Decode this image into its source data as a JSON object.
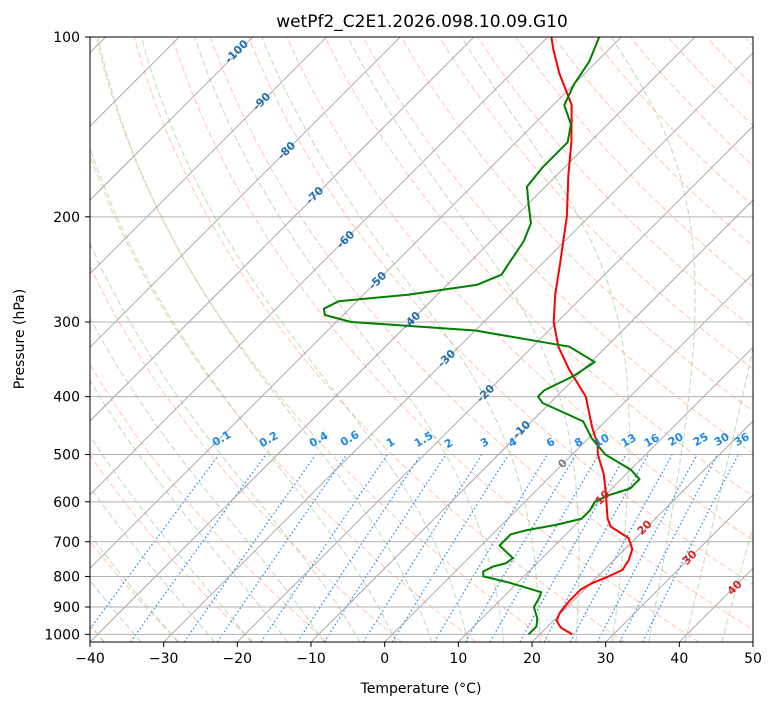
{
  "chart_data": {
    "type": "line",
    "title": "wetPf2_C2E1.2026.098.10.09.G10",
    "xlabel": "Temperature (°C)",
    "ylabel": "Pressure (hPa)",
    "xlim": [
      -40,
      50
    ],
    "ylim": [
      1030,
      100
    ],
    "y_scale": "log",
    "skew": true,
    "grid": true,
    "x_ticks": [
      -40,
      -30,
      -20,
      -10,
      0,
      10,
      20,
      30,
      40,
      50
    ],
    "y_ticks": [
      100,
      200,
      300,
      400,
      500,
      600,
      700,
      800,
      900,
      1000
    ],
    "series": [
      {
        "color": "#ff0000",
        "points": [
          {
            "p": 1000,
            "t": 24.4
          },
          {
            "p": 975,
            "t": 22.0
          },
          {
            "p": 950,
            "t": 20.5
          },
          {
            "p": 920,
            "t": 19.8
          },
          {
            "p": 880,
            "t": 19.5
          },
          {
            "p": 840,
            "t": 19.5
          },
          {
            "p": 820,
            "t": 20.2
          },
          {
            "p": 800,
            "t": 21.5
          },
          {
            "p": 780,
            "t": 22.5
          },
          {
            "p": 750,
            "t": 22.0
          },
          {
            "p": 720,
            "t": 21.0
          },
          {
            "p": 690,
            "t": 19.0
          },
          {
            "p": 660,
            "t": 15.0
          },
          {
            "p": 640,
            "t": 13.5
          },
          {
            "p": 620,
            "t": 12.3
          },
          {
            "p": 580,
            "t": 9.8
          },
          {
            "p": 540,
            "t": 7.0
          },
          {
            "p": 500,
            "t": 3.5
          },
          {
            "p": 480,
            "t": 2.0
          },
          {
            "p": 450,
            "t": -1.0
          },
          {
            "p": 400,
            "t": -6.0
          },
          {
            "p": 360,
            "t": -12.0
          },
          {
            "p": 330,
            "t": -16.5
          },
          {
            "p": 300,
            "t": -20.5
          },
          {
            "p": 270,
            "t": -24.0
          },
          {
            "p": 240,
            "t": -27.5
          },
          {
            "p": 200,
            "t": -33.0
          },
          {
            "p": 170,
            "t": -38.5
          },
          {
            "p": 150,
            "t": -42.5
          },
          {
            "p": 130,
            "t": -47.5
          },
          {
            "p": 115,
            "t": -53.5
          },
          {
            "p": 105,
            "t": -57.5
          },
          {
            "p": 100,
            "t": -59.5
          }
        ]
      },
      {
        "color": "#008000",
        "points": [
          {
            "p": 1000,
            "t": 18.5
          },
          {
            "p": 970,
            "t": 18.5
          },
          {
            "p": 940,
            "t": 17.5
          },
          {
            "p": 900,
            "t": 15.5
          },
          {
            "p": 870,
            "t": 15.0
          },
          {
            "p": 850,
            "t": 14.5
          },
          {
            "p": 820,
            "t": 9.0
          },
          {
            "p": 800,
            "t": 4.5
          },
          {
            "p": 785,
            "t": 3.8
          },
          {
            "p": 770,
            "t": 4.5
          },
          {
            "p": 760,
            "t": 5.8
          },
          {
            "p": 745,
            "t": 6.0
          },
          {
            "p": 730,
            "t": 4.5
          },
          {
            "p": 710,
            "t": 2.5
          },
          {
            "p": 680,
            "t": 2.5
          },
          {
            "p": 670,
            "t": 4.0
          },
          {
            "p": 655,
            "t": 7.5
          },
          {
            "p": 640,
            "t": 10.0
          },
          {
            "p": 620,
            "t": 10.0
          },
          {
            "p": 600,
            "t": 9.5
          },
          {
            "p": 585,
            "t": 10.5
          },
          {
            "p": 570,
            "t": 12.5
          },
          {
            "p": 550,
            "t": 12.5
          },
          {
            "p": 530,
            "t": 10.0
          },
          {
            "p": 500,
            "t": 4.5
          },
          {
            "p": 470,
            "t": 0.5
          },
          {
            "p": 440,
            "t": -3.0
          },
          {
            "p": 410,
            "t": -11.0
          },
          {
            "p": 400,
            "t": -12.5
          },
          {
            "p": 390,
            "t": -12.5
          },
          {
            "p": 370,
            "t": -10.5
          },
          {
            "p": 350,
            "t": -9.5
          },
          {
            "p": 330,
            "t": -15.0
          },
          {
            "p": 310,
            "t": -30.0
          },
          {
            "p": 300,
            "t": -48.0
          },
          {
            "p": 292,
            "t": -52.5
          },
          {
            "p": 285,
            "t": -53.5
          },
          {
            "p": 277,
            "t": -52.5
          },
          {
            "p": 270,
            "t": -44.0
          },
          {
            "p": 260,
            "t": -36.0
          },
          {
            "p": 250,
            "t": -34.0
          },
          {
            "p": 240,
            "t": -34.5
          },
          {
            "p": 220,
            "t": -35.5
          },
          {
            "p": 205,
            "t": -37.0
          },
          {
            "p": 190,
            "t": -40.0
          },
          {
            "p": 178,
            "t": -42.5
          },
          {
            "p": 165,
            "t": -43.0
          },
          {
            "p": 150,
            "t": -43.0
          },
          {
            "p": 140,
            "t": -45.0
          },
          {
            "p": 130,
            "t": -48.5
          },
          {
            "p": 120,
            "t": -50.0
          },
          {
            "p": 110,
            "t": -51.0
          },
          {
            "p": 100,
            "t": -53.0
          }
        ]
      }
    ],
    "dry_adiabat_labels": [
      "-100",
      "-90",
      "-80",
      "-70",
      "-60",
      "-50",
      "-40",
      "-30",
      "-20",
      "-10",
      "0",
      "10",
      "20",
      "30",
      "40"
    ],
    "mixing_ratio_labels": [
      "0.1",
      "0.2",
      "0.4",
      "0.6",
      "1",
      "1.5",
      "2",
      "3",
      "4",
      "6",
      "8",
      "10",
      "13",
      "16",
      "20",
      "25",
      "30",
      "36"
    ],
    "colors": {
      "temperature": "#ff0000",
      "dewpoint": "#008000",
      "isotherm": "#999999",
      "isobar": "#b0b0b0",
      "dry_adiabat": "#ffa080",
      "moist_adiabat": "#80c080",
      "mixing_ratio": "#1e88e5",
      "label_cold": "#1f6fb0",
      "label_zero": "#808080",
      "label_warm": "#d62728"
    }
  }
}
